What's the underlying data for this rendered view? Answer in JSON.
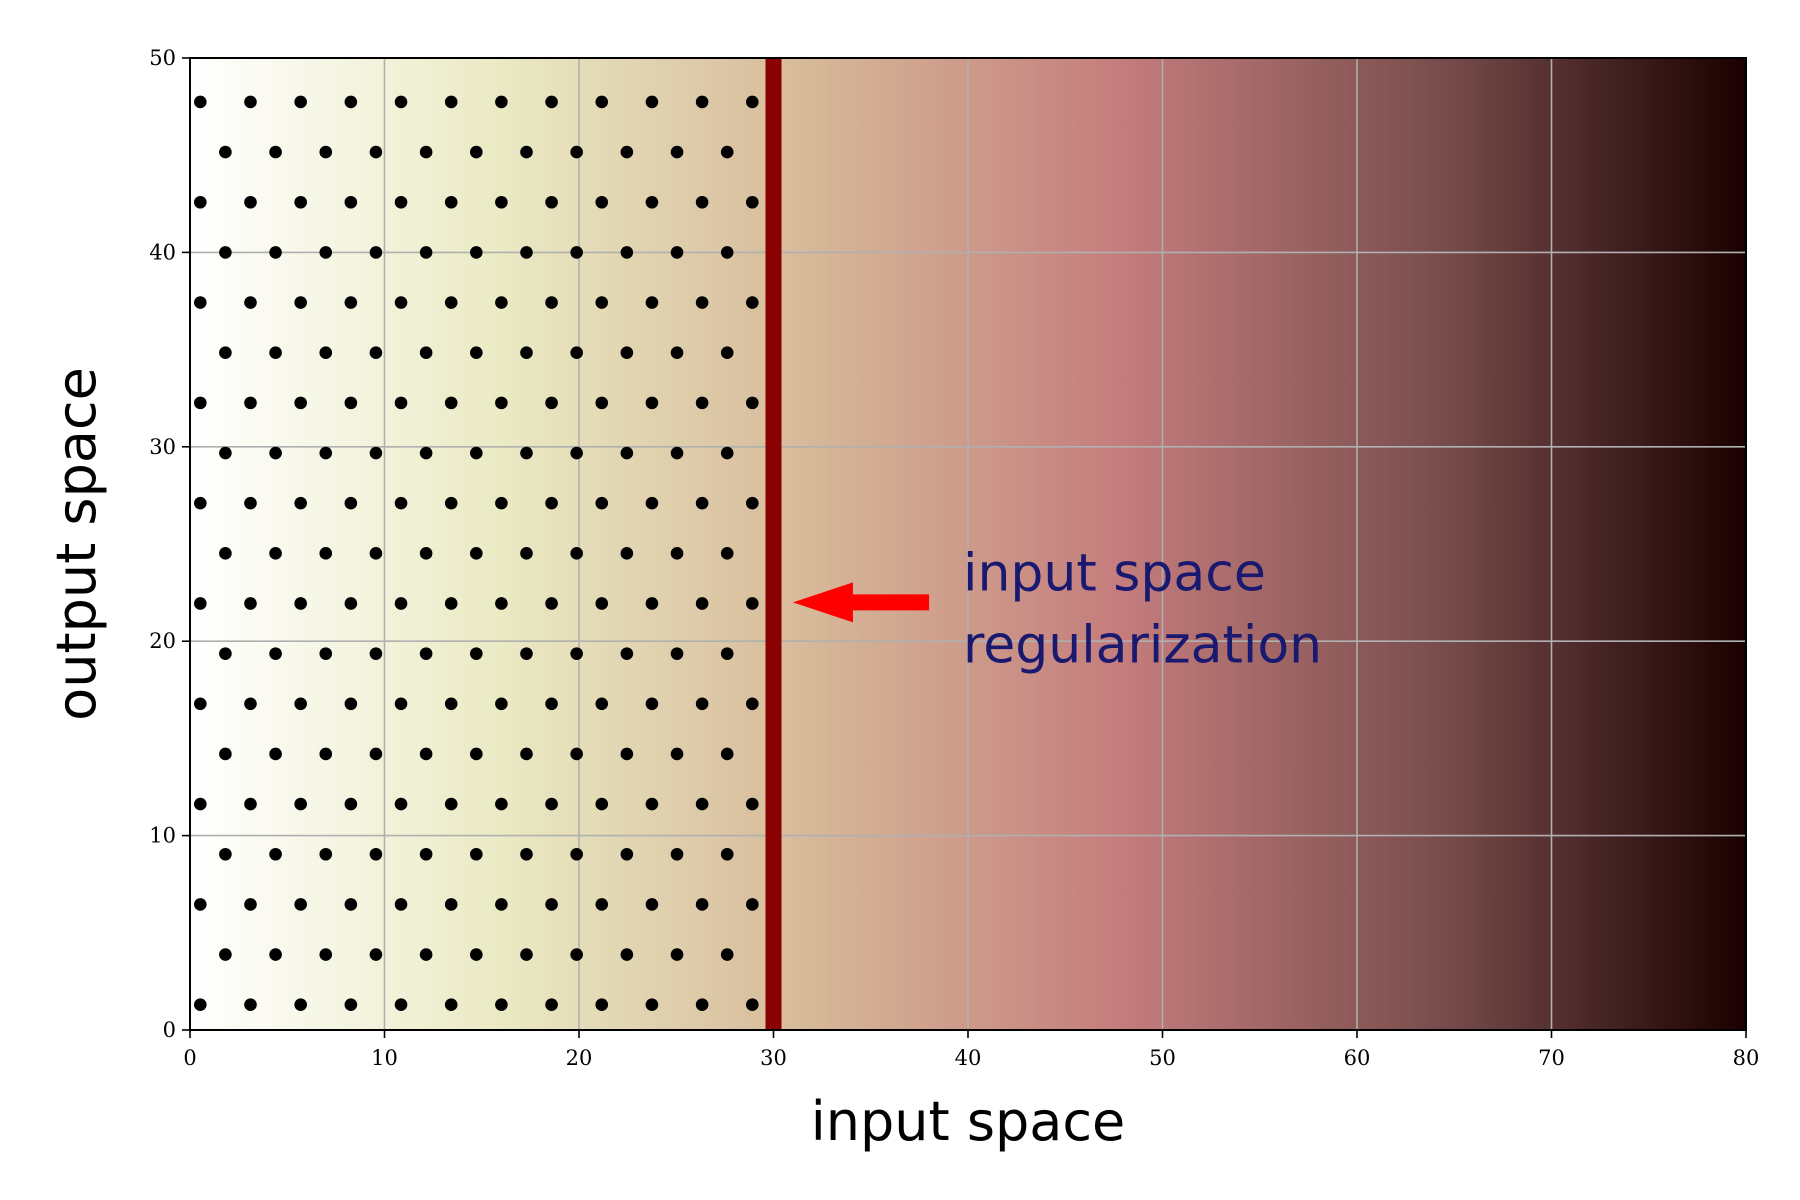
{
  "chart_data": {
    "type": "scatter",
    "xlabel": "input space",
    "ylabel": "output space",
    "xlim": [
      0,
      80
    ],
    "ylim": [
      0,
      50
    ],
    "xticks": [
      0,
      10,
      20,
      30,
      40,
      50,
      60,
      70,
      80
    ],
    "yticks": [
      0,
      10,
      20,
      30,
      40,
      50
    ],
    "grid": true,
    "color": "#000000",
    "background_colors": [
      "#ffffff",
      "#eaeac4",
      "#d6b898",
      "#c47c7c",
      "#7a4e4e",
      "#1a0000"
    ],
    "vline": {
      "x": 30,
      "color": "#8b0000"
    },
    "annotation": {
      "text_lines": [
        "input space",
        "regularization"
      ],
      "color": "#191970",
      "arrow_color": "#ff0000",
      "xy": [
        31,
        22
      ],
      "xytext": [
        38,
        22
      ],
      "text_xy": [
        40,
        22
      ]
    },
    "x": [
      0.53,
      3.11,
      5.69,
      8.27,
      10.85,
      13.43,
      16.01,
      18.59,
      21.17,
      23.75,
      26.33,
      28.91,
      1.82,
      4.4,
      6.98,
      9.56,
      12.14,
      14.72,
      17.3,
      19.88,
      22.46,
      25.04,
      27.62,
      0.53,
      3.11,
      5.69,
      8.27,
      10.85,
      13.43,
      16.01,
      18.59,
      21.17,
      23.75,
      26.33,
      28.91,
      1.82,
      4.4,
      6.98,
      9.56,
      12.14,
      14.72,
      17.3,
      19.88,
      22.46,
      25.04,
      27.62,
      0.53,
      3.11,
      5.69,
      8.27,
      10.85,
      13.43,
      16.01,
      18.59,
      21.17,
      23.75,
      26.33,
      28.91,
      1.82,
      4.4,
      6.98,
      9.56,
      12.14,
      14.72,
      17.3,
      19.88,
      22.46,
      25.04,
      27.62,
      0.53,
      3.11,
      5.69,
      8.27,
      10.85,
      13.43,
      16.01,
      18.59,
      21.17,
      23.75,
      26.33,
      28.91,
      1.82,
      4.4,
      6.98,
      9.56,
      12.14,
      14.72,
      17.3,
      19.88,
      22.46,
      25.04,
      27.62,
      0.53,
      3.11,
      5.69,
      8.27,
      10.85,
      13.43,
      16.01,
      18.59,
      21.17,
      23.75,
      26.33,
      28.91,
      1.82,
      4.4,
      6.98,
      9.56,
      12.14,
      14.72,
      17.3,
      19.88,
      22.46,
      25.04,
      27.62,
      0.53,
      3.11,
      5.69,
      8.27,
      10.85,
      13.43,
      16.01,
      18.59,
      21.17,
      23.75,
      26.33,
      28.91,
      1.82,
      4.4,
      6.98,
      9.56,
      12.14,
      14.72,
      17.3,
      19.88,
      22.46,
      25.04,
      27.62,
      0.53,
      3.11,
      5.69,
      8.27,
      10.85,
      13.43,
      16.01,
      18.59,
      21.17,
      23.75,
      26.33,
      28.91,
      1.82,
      4.4,
      6.98,
      9.56,
      12.14,
      14.72,
      17.3,
      19.88,
      22.46,
      25.04,
      27.62,
      0.53,
      3.11,
      5.69,
      8.27,
      10.85,
      13.43,
      16.01,
      18.59,
      21.17,
      23.75,
      26.33,
      28.91,
      1.82,
      4.4,
      6.98,
      9.56,
      12.14,
      14.72,
      17.3,
      19.88,
      22.46,
      25.04,
      27.62,
      0.53,
      3.11,
      5.69,
      8.27,
      10.85,
      13.43,
      16.01,
      18.59,
      21.17,
      23.75,
      26.33,
      28.91,
      1.82,
      4.4,
      6.98,
      9.56,
      12.14,
      14.72,
      17.3,
      19.88,
      22.46,
      25.04,
      27.62,
      0.53,
      3.11,
      5.69,
      8.27,
      10.85,
      13.43,
      16.01,
      18.59,
      21.17,
      23.75,
      26.33,
      28.91
    ],
    "values": [
      1.3,
      1.3,
      1.3,
      1.3,
      1.3,
      1.3,
      1.3,
      1.3,
      1.3,
      1.3,
      1.3,
      1.3,
      3.88,
      3.88,
      3.88,
      3.88,
      3.88,
      3.88,
      3.88,
      3.88,
      3.88,
      3.88,
      3.88,
      6.46,
      6.46,
      6.46,
      6.46,
      6.46,
      6.46,
      6.46,
      6.46,
      6.46,
      6.46,
      6.46,
      6.46,
      9.04,
      9.04,
      9.04,
      9.04,
      9.04,
      9.04,
      9.04,
      9.04,
      9.04,
      9.04,
      9.04,
      11.62,
      11.62,
      11.62,
      11.62,
      11.62,
      11.62,
      11.62,
      11.62,
      11.62,
      11.62,
      11.62,
      11.62,
      14.2,
      14.2,
      14.2,
      14.2,
      14.2,
      14.2,
      14.2,
      14.2,
      14.2,
      14.2,
      14.2,
      16.78,
      16.78,
      16.78,
      16.78,
      16.78,
      16.78,
      16.78,
      16.78,
      16.78,
      16.78,
      16.78,
      16.78,
      19.36,
      19.36,
      19.36,
      19.36,
      19.36,
      19.36,
      19.36,
      19.36,
      19.36,
      19.36,
      19.36,
      21.94,
      21.94,
      21.94,
      21.94,
      21.94,
      21.94,
      21.94,
      21.94,
      21.94,
      21.94,
      21.94,
      21.94,
      24.52,
      24.52,
      24.52,
      24.52,
      24.52,
      24.52,
      24.52,
      24.52,
      24.52,
      24.52,
      24.52,
      27.1,
      27.1,
      27.1,
      27.1,
      27.1,
      27.1,
      27.1,
      27.1,
      27.1,
      27.1,
      27.1,
      27.1,
      29.68,
      29.68,
      29.68,
      29.68,
      29.68,
      29.68,
      29.68,
      29.68,
      29.68,
      29.68,
      29.68,
      32.26,
      32.26,
      32.26,
      32.26,
      32.26,
      32.26,
      32.26,
      32.26,
      32.26,
      32.26,
      32.26,
      32.26,
      34.84,
      34.84,
      34.84,
      34.84,
      34.84,
      34.84,
      34.84,
      34.84,
      34.84,
      34.84,
      34.84,
      37.42,
      37.42,
      37.42,
      37.42,
      37.42,
      37.42,
      37.42,
      37.42,
      37.42,
      37.42,
      37.42,
      37.42,
      40,
      40,
      40,
      40,
      40,
      40,
      40,
      40,
      40,
      40,
      40,
      42.58,
      42.58,
      42.58,
      42.58,
      42.58,
      42.58,
      42.58,
      42.58,
      42.58,
      42.58,
      42.58,
      42.58,
      45.16,
      45.16,
      45.16,
      45.16,
      45.16,
      45.16,
      45.16,
      45.16,
      45.16,
      45.16,
      45.16,
      47.74,
      47.74,
      47.74,
      47.74,
      47.74,
      47.74,
      47.74,
      47.74,
      47.74,
      47.74,
      47.74,
      47.74
    ]
  }
}
